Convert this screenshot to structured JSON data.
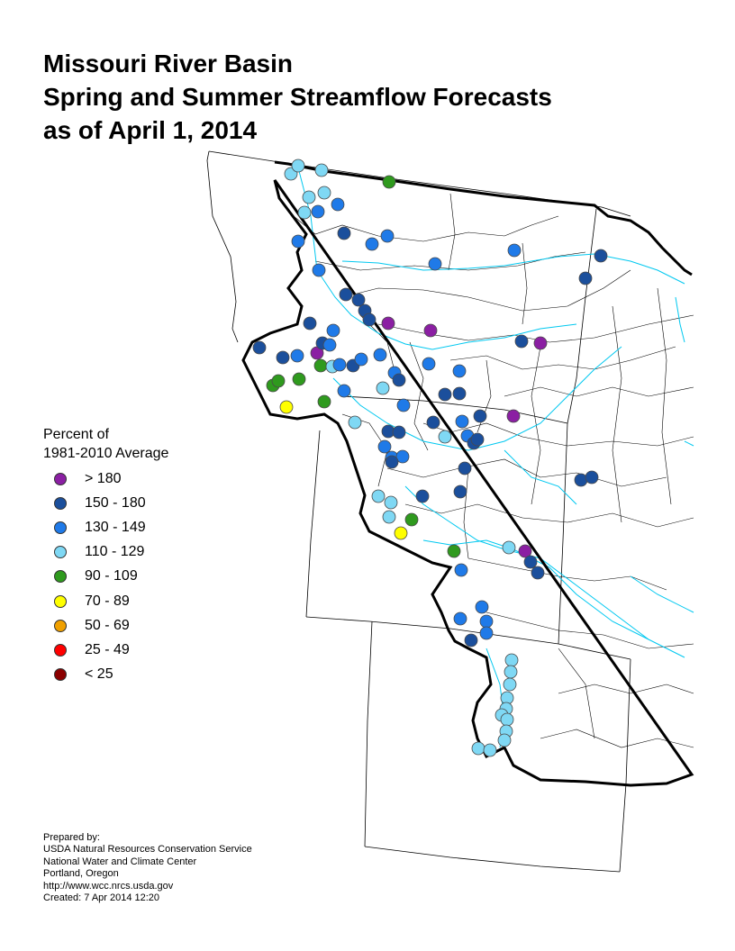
{
  "title": {
    "line1": "Missouri River Basin",
    "line2": "Spring and Summer Streamflow Forecasts",
    "line3": "as of April 1, 2014"
  },
  "legend": {
    "title_line1": "Percent of",
    "title_line2": "1981-2010 Average",
    "classes": [
      {
        "label": "> 180",
        "color": "#8b1fa3"
      },
      {
        "label": "150 - 180",
        "color": "#1b4f9c"
      },
      {
        "label": "130 - 149",
        "color": "#1f7ae8"
      },
      {
        "label": "110 - 129",
        "color": "#7fd8f4"
      },
      {
        "label": "90 - 109",
        "color": "#2f9a1e"
      },
      {
        "label": "70 - 89",
        "color": "#ffff00"
      },
      {
        "label": "50 - 69",
        "color": "#f0a000"
      },
      {
        "label": "25 - 49",
        "color": "#ff0000"
      },
      {
        "label": "< 25",
        "color": "#8b0000"
      }
    ]
  },
  "footer": {
    "line1": "Prepared by:",
    "line2": "USDA Natural Resources Conservation Service",
    "line3": "National Water and Climate Center",
    "line4": "Portland, Oregon",
    "line5": "http://www.wcc.nrcs.usda.gov",
    "line6": "Created:   7 Apr 2014   12:20"
  },
  "colors": {
    "basin_boundary": "#000000",
    "state_lines": "#000000",
    "subbasins": "#000000",
    "rivers": "#00c8f0"
  }
}
